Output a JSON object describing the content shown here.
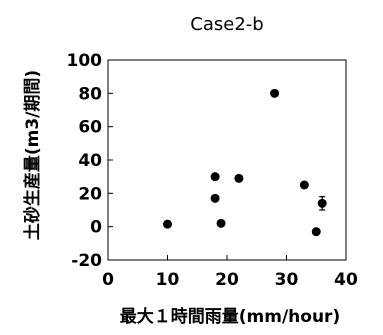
{
  "chart_data": {
    "type": "scatter",
    "title": "Case2-b",
    "xlabel": "最大１時間雨量(mm/hour)",
    "ylabel": "土砂生産量(m3/期間)",
    "xlim": [
      0,
      40
    ],
    "ylim": [
      -20,
      100
    ],
    "xticks": [
      "0",
      "10",
      "20",
      "30",
      "40"
    ],
    "yticks": [
      "100",
      "80",
      "60",
      "40",
      "20",
      "0",
      "-20"
    ],
    "grid": false,
    "legend": "none",
    "marker_color": "#000000",
    "points": [
      {
        "x": 10,
        "y": 1.5
      },
      {
        "x": 18,
        "y": 30
      },
      {
        "x": 18,
        "y": 17
      },
      {
        "x": 19,
        "y": 2
      },
      {
        "x": 22,
        "y": 29
      },
      {
        "x": 28,
        "y": 80
      },
      {
        "x": 33,
        "y": 25
      },
      {
        "x": 35,
        "y": -3
      },
      {
        "x": 36,
        "y": 14,
        "err": 4
      }
    ]
  }
}
